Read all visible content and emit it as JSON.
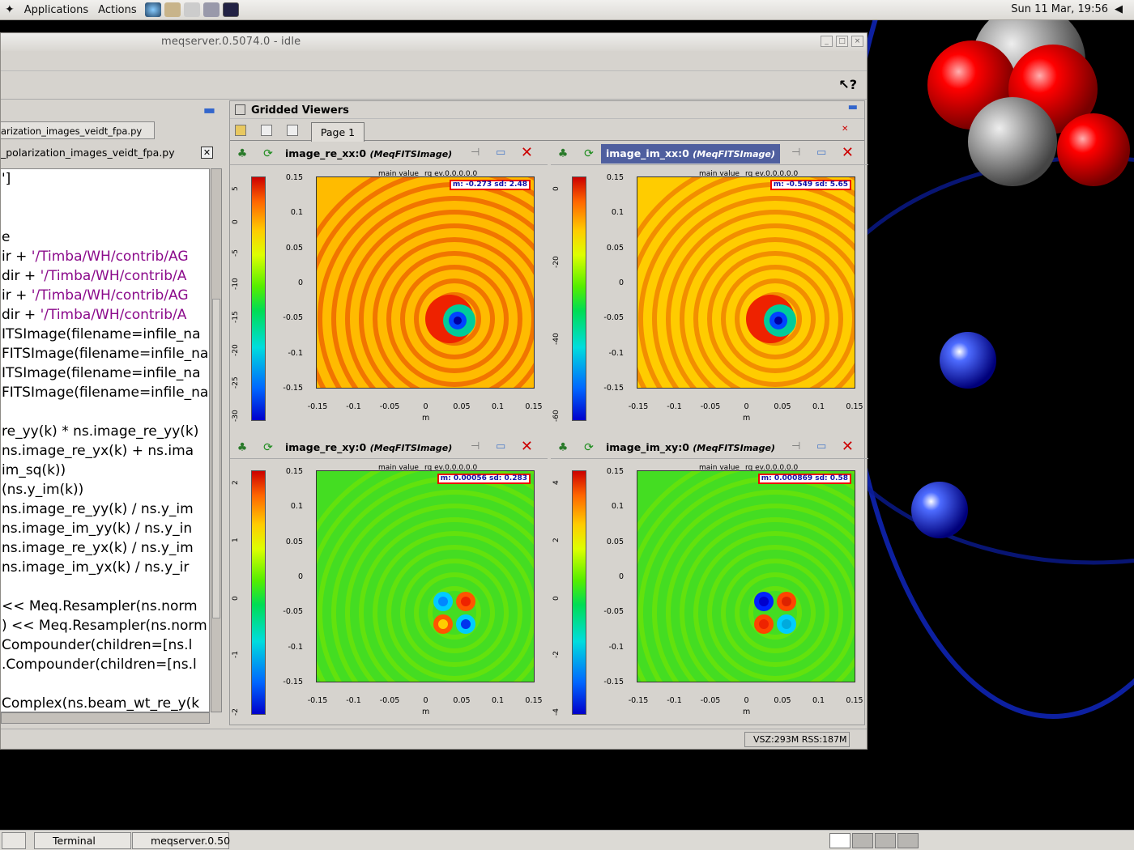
{
  "topbar": {
    "applications": "Applications",
    "actions": "Actions",
    "clock": "Sun 11 Mar, 19:56"
  },
  "window": {
    "title": "meqserver.0.5074.0 - idle"
  },
  "editor": {
    "tab": "arization_images_veidt_fpa.py",
    "file": "_polarization_images_veidt_fpa.py",
    "lines": [
      {
        "t": "']",
        "s": ""
      },
      {
        "t": "",
        "s": ""
      },
      {
        "t": "",
        "s": ""
      },
      {
        "t": "e",
        "s": ""
      },
      {
        "t": "ir + ",
        "s": "'/Timba/WH/contrib/AG"
      },
      {
        "t": "dir + ",
        "s": "'/Timba/WH/contrib/A"
      },
      {
        "t": "ir + ",
        "s": "'/Timba/WH/contrib/AG"
      },
      {
        "t": "dir + ",
        "s": "'/Timba/WH/contrib/A"
      },
      {
        "t": "ITSImage(filename=infile_na",
        "s": ""
      },
      {
        "t": "FITSImage(filename=infile_na",
        "s": ""
      },
      {
        "t": "ITSImage(filename=infile_na",
        "s": ""
      },
      {
        "t": "FITSImage(filename=infile_na",
        "s": ""
      },
      {
        "t": "",
        "s": ""
      },
      {
        "t": "re_yy(k) * ns.image_re_yy(k)",
        "s": ""
      },
      {
        "t": " ns.image_re_yx(k) + ns.ima",
        "s": ""
      },
      {
        "t": "im_sq(k))",
        "s": ""
      },
      {
        "t": "(ns.y_im(k))",
        "s": ""
      },
      {
        "t": "ns.image_re_yy(k) / ns.y_im",
        "s": ""
      },
      {
        "t": " ns.image_im_yy(k) / ns.y_in",
        "s": ""
      },
      {
        "t": " ns.image_re_yx(k) / ns.y_im",
        "s": ""
      },
      {
        "t": " ns.image_im_yx(k) / ns.y_ir",
        "s": ""
      },
      {
        "t": "",
        "s": ""
      },
      {
        "t": " << Meq.Resampler(ns.norm",
        "s": ""
      },
      {
        "t": ") << Meq.Resampler(ns.norm",
        "s": ""
      },
      {
        "t": "Compounder(children=[ns.l",
        "s": ""
      },
      {
        "t": ".Compounder(children=[ns.l",
        "s": ""
      },
      {
        "t": "",
        "s": ""
      },
      {
        "t": "Complex(ns.beam_wt_re_y(k",
        "s": ""
      }
    ]
  },
  "viewers": {
    "title": "Gridded Viewers",
    "page_tab": "Page 1",
    "main_value": "main value",
    "rq": "rq ev.0.0.0.0.0",
    "x_label": "m",
    "x_ticks": [
      "-0.15",
      "-0.1",
      "-0.05",
      "0",
      "0.05",
      "0.1",
      "0.15"
    ],
    "y_ticks": [
      "0.15",
      "0.1",
      "0.05",
      "0",
      "-0.05",
      "-0.1",
      "-0.15"
    ],
    "panels": [
      {
        "name": "image_re_xx:0",
        "type": "(MeqFITSImage)",
        "stats": "m: -0.273 sd: 2.48",
        "cbar_ticks": [
          "5",
          "0",
          "-5",
          "-10",
          "-15",
          "-20",
          "-25",
          "-30"
        ],
        "selected": false
      },
      {
        "name": "image_im_xx:0",
        "type": "(MeqFITSImage)",
        "stats": "m: -0.549 sd: 5.65",
        "cbar_ticks": [
          "0",
          "-20",
          "-40",
          "-60"
        ],
        "selected": true
      },
      {
        "name": "image_re_xy:0",
        "type": "(MeqFITSImage)",
        "stats": "m: 0.00056 sd: 0.283",
        "cbar_ticks": [
          "2",
          "1",
          "0",
          "-1",
          "-2"
        ],
        "selected": false
      },
      {
        "name": "image_im_xy:0",
        "type": "(MeqFITSImage)",
        "stats": "m: 0.000869 sd: 0.58",
        "cbar_ticks": [
          "4",
          "2",
          "0",
          "-2",
          "-4"
        ],
        "selected": false
      }
    ]
  },
  "status": {
    "mem": "VSZ:293M RSS:187M"
  },
  "taskbar": {
    "terminal": "Terminal",
    "meqserver": "meqserver.0.50"
  }
}
